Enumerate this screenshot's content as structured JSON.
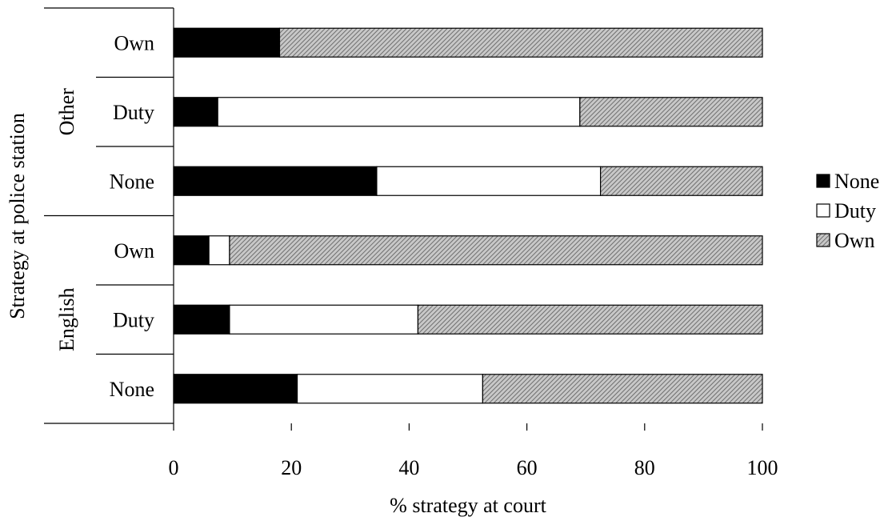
{
  "chart_data": {
    "type": "bar",
    "orientation": "horizontal",
    "stacked": true,
    "xlabel": "% strategy at court",
    "ylabel": "Strategy at police station",
    "xlim": [
      0,
      100
    ],
    "xticks": [
      "0",
      "20",
      "40",
      "60",
      "80",
      "100"
    ],
    "grid": false,
    "legend_position": "right",
    "groups": [
      {
        "name": "Other",
        "categories": [
          "Own",
          "Duty",
          "None"
        ]
      },
      {
        "name": "English",
        "categories": [
          "Own",
          "Duty",
          "None"
        ]
      }
    ],
    "categories": [
      "Other / Own",
      "Other / Duty",
      "Other / None",
      "English / Own",
      "English / Duty",
      "English / None"
    ],
    "series": [
      {
        "name": "None",
        "color": "#000000",
        "pattern": "solid",
        "values": [
          18,
          7.5,
          34.5,
          6,
          9.5,
          21
        ]
      },
      {
        "name": "Duty",
        "color": "#ffffff",
        "pattern": "solid",
        "values": [
          0,
          61.5,
          38,
          3.5,
          32,
          31.5
        ]
      },
      {
        "name": "Own",
        "color": "#a0a0a0",
        "pattern": "hatched",
        "values": [
          82,
          31,
          27.5,
          90.5,
          58.5,
          47.5
        ]
      }
    ]
  }
}
